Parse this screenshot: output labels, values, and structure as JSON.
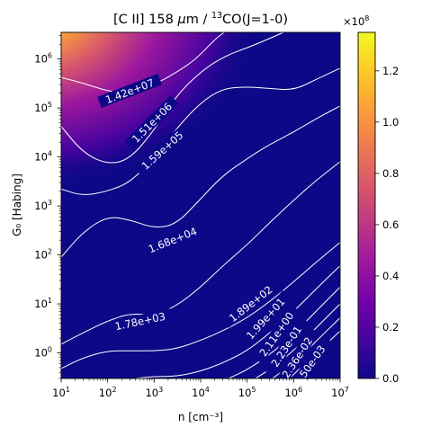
{
  "chart_data": {
    "type": "heatmap",
    "title": "[C II] 158 μm / 13CO(J=1-0)",
    "title_parts": {
      "prefix": "[C II] 158 ",
      "mu": "μ",
      "unit": "m / ",
      "sup": "13",
      "suffix": "CO(J=1-0)"
    },
    "xlabel": "n [cm⁻³]",
    "ylabel": "G₀ [Habing]",
    "xscale": "log",
    "yscale": "log",
    "xlim": [
      10,
      10000000
    ],
    "ylim": [
      0.3,
      3500000
    ],
    "x_ticks": [
      {
        "value": 10,
        "base": "10",
        "exp": "1"
      },
      {
        "value": 100,
        "base": "10",
        "exp": "2"
      },
      {
        "value": 1000,
        "base": "10",
        "exp": "3"
      },
      {
        "value": 10000,
        "base": "10",
        "exp": "4"
      },
      {
        "value": 100000,
        "base": "10",
        "exp": "5"
      },
      {
        "value": 1000000,
        "base": "10",
        "exp": "6"
      },
      {
        "value": 10000000,
        "base": "10",
        "exp": "7"
      }
    ],
    "y_ticks": [
      {
        "value": 1,
        "base": "10",
        "exp": "0"
      },
      {
        "value": 10,
        "base": "10",
        "exp": "1"
      },
      {
        "value": 100,
        "base": "10",
        "exp": "2"
      },
      {
        "value": 1000,
        "base": "10",
        "exp": "3"
      },
      {
        "value": 10000,
        "base": "10",
        "exp": "4"
      },
      {
        "value": 100000,
        "base": "10",
        "exp": "5"
      },
      {
        "value": 1000000,
        "base": "10",
        "exp": "6"
      }
    ],
    "colormap": [
      "#0d0887",
      "#46039f",
      "#7201a8",
      "#9c179e",
      "#bd3786",
      "#d8576b",
      "#ed7953",
      "#fb9f3a",
      "#fdca26",
      "#f0f921"
    ],
    "line_color": "#ffffff",
    "colorbar": {
      "range": [
        0,
        135000000
      ],
      "ticks": [
        "0.0",
        "0.2",
        "0.4",
        "0.6",
        "0.8",
        "1.0",
        "1.2"
      ],
      "tick_values": [
        0,
        0.2,
        0.4,
        0.6,
        0.8,
        1.0,
        1.2
      ],
      "scale_multiplier_base": "×10",
      "scale_multiplier_exp": "8"
    },
    "contours": [
      {
        "level": "1.42e+07",
        "points": [
          [
            10,
            420000
          ],
          [
            30,
            320000
          ],
          [
            100,
            220000
          ],
          [
            300,
            200000
          ],
          [
            1000,
            300000
          ],
          [
            3000,
            530000
          ],
          [
            8000,
            1000000
          ],
          [
            20000,
            2500000
          ],
          [
            32000,
            3500000
          ]
        ],
        "label_at": [
          300,
          220000
        ],
        "label_angle": -21
      },
      {
        "level": "1.51e+06",
        "points": [
          [
            10,
            42000
          ],
          [
            30,
            12000
          ],
          [
            100,
            7000
          ],
          [
            300,
            9000
          ],
          [
            1000,
            35000
          ],
          [
            3000,
            180000
          ],
          [
            10000,
            550000
          ],
          [
            30000,
            1100000
          ],
          [
            100000,
            1700000
          ],
          [
            300000,
            2600000
          ],
          [
            600000,
            3500000
          ]
        ],
        "label_at": [
          900,
          50000
        ],
        "label_angle": -45
      },
      {
        "level": "1.59e+05",
        "points": [
          [
            10,
            2200
          ],
          [
            30,
            1600
          ],
          [
            100,
            2000
          ],
          [
            300,
            3000
          ],
          [
            1000,
            9500
          ],
          [
            3000,
            38000
          ],
          [
            10000,
            130000
          ],
          [
            30000,
            250000
          ],
          [
            100000,
            270000
          ],
          [
            300000,
            250000
          ],
          [
            1000000,
            230000
          ],
          [
            3000000,
            380000
          ],
          [
            10000000,
            650000
          ]
        ],
        "label_at": [
          1500,
          13500
        ],
        "label_angle": -42
      },
      {
        "level": "1.68e+04",
        "points": [
          [
            10,
            90
          ],
          [
            30,
            300
          ],
          [
            100,
            620
          ],
          [
            300,
            520
          ],
          [
            1000,
            350
          ],
          [
            3000,
            420
          ],
          [
            10000,
            1400
          ],
          [
            30000,
            4200
          ],
          [
            100000,
            9200
          ],
          [
            300000,
            18000
          ],
          [
            1000000,
            32000
          ],
          [
            3000000,
            60000
          ],
          [
            10000000,
            110000
          ]
        ],
        "label_at": [
          2500,
          200
        ],
        "label_angle": -22
      },
      {
        "level": "1.78e+03",
        "points": [
          [
            10,
            1.5
          ],
          [
            30,
            2.6
          ],
          [
            100,
            4.5
          ],
          [
            300,
            6.4
          ],
          [
            1000,
            5.8
          ],
          [
            3000,
            9
          ],
          [
            10000,
            22
          ],
          [
            30000,
            60
          ],
          [
            100000,
            160
          ],
          [
            300000,
            450
          ],
          [
            1000000,
            1300
          ],
          [
            3000000,
            3300
          ],
          [
            10000000,
            8000
          ]
        ],
        "label_at": [
          500,
          4.4
        ],
        "label_angle": -12
      },
      {
        "level": "1.89e+02",
        "points": [
          [
            10,
            0.48
          ],
          [
            30,
            0.8
          ],
          [
            100,
            1.1
          ],
          [
            300,
            1.1
          ],
          [
            1000,
            1.1
          ],
          [
            3000,
            1.2
          ],
          [
            10000,
            1.8
          ],
          [
            30000,
            2.8
          ],
          [
            100000,
            5.2
          ],
          [
            300000,
            11
          ],
          [
            1000000,
            28
          ],
          [
            3000000,
            70
          ],
          [
            10000000,
            180
          ]
        ],
        "label_at": [
          120000,
          10
        ],
        "label_angle": -38
      },
      {
        "level": "1.99e+01",
        "points": [
          [
            400,
            0.3
          ],
          [
            1000,
            0.33
          ],
          [
            3000,
            0.33
          ],
          [
            10000,
            0.42
          ],
          [
            30000,
            0.62
          ],
          [
            100000,
            1.1
          ],
          [
            300000,
            2.5
          ],
          [
            1000000,
            7
          ],
          [
            3000000,
            20
          ],
          [
            10000000,
            60
          ]
        ],
        "label_at": [
          250000,
          5
        ],
        "label_angle": -48
      },
      {
        "level": "2.11e+00",
        "points": [
          [
            40000,
            0.3
          ],
          [
            100000,
            0.45
          ],
          [
            300000,
            0.9
          ],
          [
            1000000,
            2.4
          ],
          [
            3000000,
            7
          ],
          [
            10000000,
            22
          ]
        ],
        "label_at": [
          430000,
          2.4
        ],
        "label_angle": -55
      },
      {
        "level": "2.23e-01",
        "points": [
          [
            150000,
            0.3
          ],
          [
            300000,
            0.45
          ],
          [
            1000000,
            1.1
          ],
          [
            3000000,
            3.2
          ],
          [
            10000000,
            10
          ]
        ],
        "label_at": [
          700000,
          1.35
        ],
        "label_angle": -57
      },
      {
        "level": "2.36e-02",
        "points": [
          [
            350000,
            0.3
          ],
          [
            1000000,
            0.62
          ],
          [
            3000000,
            1.7
          ],
          [
            10000000,
            5.2
          ]
        ],
        "label_at": [
          1200000,
          0.8
        ],
        "label_angle": -57
      },
      {
        "level": "2.50e-03",
        "points": [
          [
            800000,
            0.3
          ],
          [
            3000000,
            0.95
          ],
          [
            10000000,
            2.8
          ]
        ],
        "label_at": [
          2200000,
          0.55
        ],
        "label_angle": -55
      }
    ]
  }
}
